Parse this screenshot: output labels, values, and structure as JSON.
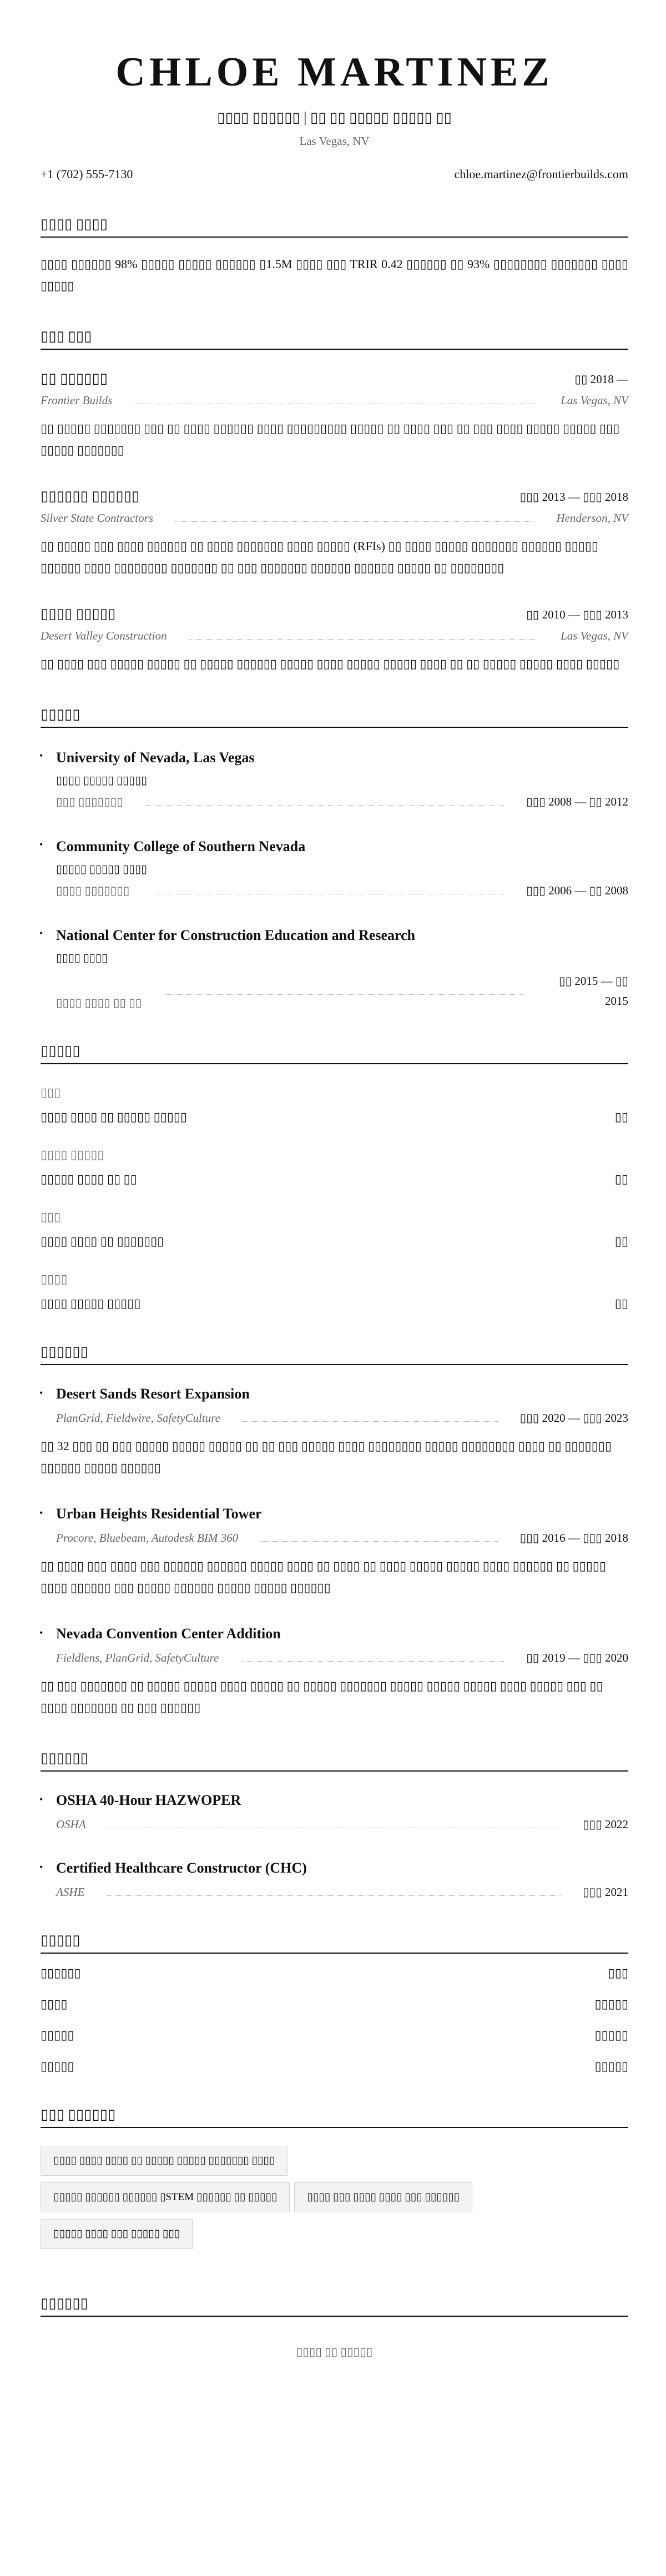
{
  "header": {
    "name": "CHLOE MARTINEZ",
    "subtitle": "▯▯▯▯ ▯▯▯▯▯▯ | ▯▯ ▯▯ ▯▯▯▯▯ ▯▯▯▯▯ ▯▯",
    "location": "Las Vegas, NV",
    "phone": "+1 (702) 555-7130",
    "email": "chloe.martinez@frontierbuilds.com"
  },
  "summary": {
    "heading": "▯▯▯▯ ▯▯▯▯",
    "text": "▯▯▯▯ ▯▯▯▯▯▯ 98% ▯▯▯▯▯ ▯▯▯▯▯ ▯▯▯▯▯▯ ▯1.5M ▯▯▯▯ ▯▯▯ TRIR 0.42 ▯▯▯▯▯▯ ▯▯ 93% ▯▯▯▯▯▯▯▯ ▯▯▯▯▯▯▯ ▯▯▯▯ ▯▯▯▯▯"
  },
  "experience": {
    "heading": "▯▯▯ ▯▯▯",
    "jobs": [
      {
        "title": "▯▯ ▯▯▯▯▯▯",
        "dates": "▯▯ 2018 —",
        "company": "Frontier Builds",
        "location": "Las Vegas, NV",
        "desc": "▯▯ ▯▯▯▯▯ ▯▯▯▯▯▯▯ ▯▯▯ ▯▯ ▯▯▯▯ ▯▯▯▯▯▯ ▯▯▯▯ ▯▯▯▯▯▯▯▯▯ ▯▯▯▯▯ ▯▯ ▯▯▯▯ ▯▯▯ ▯▯ ▯▯▯ ▯▯▯▯ ▯▯▯▯▯ ▯▯▯▯▯ ▯▯▯ ▯▯▯▯▯ ▯▯▯▯▯▯▯"
      },
      {
        "title": "▯▯▯▯▯▯ ▯▯▯▯▯▯",
        "dates": "▯▯▯ 2013 — ▯▯▯ 2018",
        "company": "Silver State Contractors",
        "location": "Henderson, NV",
        "desc": "▯▯ ▯▯▯▯▯ ▯▯▯ ▯▯▯▯ ▯▯▯▯▯▯ ▯▯ ▯▯▯▯ ▯▯▯▯▯▯▯ ▯▯▯▯ ▯▯▯▯▯ (RFIs) ▯▯ ▯▯▯▯ ▯▯▯▯▯ ▯▯▯▯▯▯▯ ▯▯▯▯▯▯ ▯▯▯▯▯ ▯▯▯▯▯▯ ▯▯▯▯ ▯▯▯▯▯▯▯▯ ▯▯▯▯▯▯▯ ▯▯ ▯▯▯ ▯▯▯▯▯▯▯ ▯▯▯▯▯▯ ▯▯▯▯▯▯ ▯▯▯▯▯ ▯▯ ▯▯▯▯▯▯▯▯"
      },
      {
        "title": "▯▯▯▯ ▯▯▯▯▯",
        "dates": "▯▯ 2010 — ▯▯▯ 2013",
        "company": "Desert Valley Construction",
        "location": "Las Vegas, NV",
        "desc": "▯▯ ▯▯▯▯ ▯▯▯ ▯▯▯▯▯ ▯▯▯▯▯ ▯▯ ▯▯▯▯▯ ▯▯▯▯▯▯ ▯▯▯▯▯ ▯▯▯▯ ▯▯▯▯▯ ▯▯▯▯▯ ▯▯▯▯ ▯▯ ▯▯ ▯▯▯▯▯ ▯▯▯▯▯ ▯▯▯▯ ▯▯▯▯▯"
      }
    ]
  },
  "education": {
    "heading": "▯▯▯▯▯",
    "items": [
      {
        "school": "University of Nevada, Las Vegas",
        "degree": "▯▯▯▯ ▯▯▯▯▯ ▯▯▯▯▯",
        "field": "▯▯▯ ▯▯▯▯▯▯▯",
        "dates": "▯▯▯ 2008 — ▯▯ 2012"
      },
      {
        "school": "Community College of Southern Nevada",
        "degree": "▯▯▯▯▯ ▯▯▯▯▯ ▯▯▯▯",
        "field": "▯▯▯▯ ▯▯▯▯▯▯▯",
        "dates": "▯▯▯ 2006 — ▯▯ 2008"
      },
      {
        "school": "National Center for Construction Education and Research",
        "degree": "▯▯▯▯ ▯▯▯▯",
        "field": "▯▯▯▯ ▯▯▯▯ ▯▯ ▯▯",
        "dates": "▯▯ 2015 — ▯▯ 2015"
      }
    ]
  },
  "skills": {
    "heading": "▯▯▯▯▯",
    "groups": [
      {
        "category": "▯▯▯",
        "item": "▯▯▯▯ ▯▯▯▯ ▯▯ ▯▯▯▯▯ ▯▯▯▯▯",
        "level": "▯▯"
      },
      {
        "category": "▯▯▯▯ ▯▯▯▯▯",
        "item": "▯▯▯▯▯ ▯▯▯▯ ▯▯ ▯▯",
        "level": "▯▯"
      },
      {
        "category": "▯▯▯",
        "item": "▯▯▯▯ ▯▯▯▯ ▯▯ ▯▯▯▯▯▯▯",
        "level": "▯▯"
      },
      {
        "category": "▯▯▯▯",
        "item": "▯▯▯▯ ▯▯▯▯▯ ▯▯▯▯▯",
        "level": "▯▯"
      }
    ]
  },
  "projects": {
    "heading": "▯▯▯▯▯▯",
    "items": [
      {
        "title": "Desert Sands Resort Expansion",
        "tools": "PlanGrid, Fieldwire, SafetyCulture",
        "dates": "▯▯▯ 2020 — ▯▯▯ 2023",
        "desc": "▯▯ 32 ▯▯▯ ▯▯ ▯▯▯ ▯▯▯▯▯ ▯▯▯▯▯ ▯▯▯▯▯ ▯▯ ▯▯ ▯▯▯ ▯▯▯▯▯ ▯▯▯▯ ▯▯▯▯▯▯▯▯ ▯▯▯▯▯ ▯▯▯▯▯▯▯▯ ▯▯▯▯ ▯▯ ▯▯▯▯▯▯▯ ▯▯▯▯▯▯ ▯▯▯▯▯ ▯▯▯▯▯▯"
      },
      {
        "title": "Urban Heights Residential Tower",
        "tools": "Procore, Bluebeam, Autodesk BIM 360",
        "dates": "▯▯▯ 2016 — ▯▯▯ 2018",
        "desc": "▯▯ ▯▯▯▯ ▯▯▯ ▯▯▯▯ ▯▯▯ ▯▯▯▯▯▯ ▯▯▯▯▯▯ ▯▯▯▯▯ ▯▯▯▯ ▯▯ ▯▯▯▯ ▯▯ ▯▯▯▯ ▯▯▯▯▯ ▯▯▯▯▯ ▯▯▯▯ ▯▯▯▯▯▯ ▯▯ ▯▯▯▯▯ ▯▯▯▯ ▯▯▯▯▯▯ ▯▯▯ ▯▯▯▯▯ ▯▯▯▯▯▯ ▯▯▯▯▯ ▯▯▯▯▯ ▯▯▯▯▯▯"
      },
      {
        "title": "Nevada Convention Center Addition",
        "tools": "Fieldlens, PlanGrid, SafetyCulture",
        "dates": "▯▯ 2019 — ▯▯▯ 2020",
        "desc": "▯▯ ▯▯▯ ▯▯▯▯▯▯▯ ▯▯ ▯▯▯▯▯ ▯▯▯▯▯ ▯▯▯▯ ▯▯▯▯▯ ▯▯ ▯▯▯▯▯ ▯▯▯▯▯▯▯ ▯▯▯▯▯ ▯▯▯▯▯ ▯▯▯▯▯ ▯▯▯▯ ▯▯▯▯▯ ▯▯▯ ▯▯ ▯▯▯▯ ▯▯▯▯▯▯▯ ▯▯ ▯▯▯ ▯▯▯▯▯▯"
      }
    ]
  },
  "certifications": {
    "heading": "▯▯▯▯▯▯",
    "items": [
      {
        "title": "OSHA 40-Hour HAZWOPER",
        "issuer": "OSHA",
        "date": "▯▯▯ 2022"
      },
      {
        "title": "Certified Healthcare Constructor (CHC)",
        "issuer": "ASHE",
        "date": "▯▯▯ 2021"
      }
    ]
  },
  "languages": {
    "heading": "▯▯▯▯▯",
    "items": [
      {
        "name": "▯▯▯▯▯▯",
        "level": "▯▯▯"
      },
      {
        "name": "▯▯▯▯",
        "level": "▯▯▯▯▯"
      },
      {
        "name": "▯▯▯▯▯",
        "level": "▯▯▯▯▯"
      },
      {
        "name": "▯▯▯▯▯",
        "level": "▯▯▯▯▯"
      }
    ]
  },
  "interests": {
    "heading": "▯▯▯ ▯▯▯▯▯▯",
    "items": [
      "▯▯▯▯ ▯▯▯▯ ▯▯▯▯ ▯▯ ▯▯▯▯▯ ▯▯▯▯▯ ▯▯▯▯▯▯▯ ▯▯▯▯",
      "▯▯▯▯▯ ▯▯▯▯▯▯ ▯▯▯▯▯▯ ▯STEM ▯▯▯▯▯▯ ▯▯ ▯▯▯▯▯",
      "▯▯▯▯ ▯▯▯ ▯▯▯▯ ▯▯▯▯ ▯▯▯ ▯▯▯▯▯▯",
      "▯▯▯▯▯ ▯▯▯▯ ▯▯▯ ▯▯▯▯▯ ▯▯▯"
    ]
  },
  "references": {
    "heading": "▯▯▯▯▯▯",
    "text": "▯▯▯▯ ▯▯ ▯▯▯▯▯"
  }
}
